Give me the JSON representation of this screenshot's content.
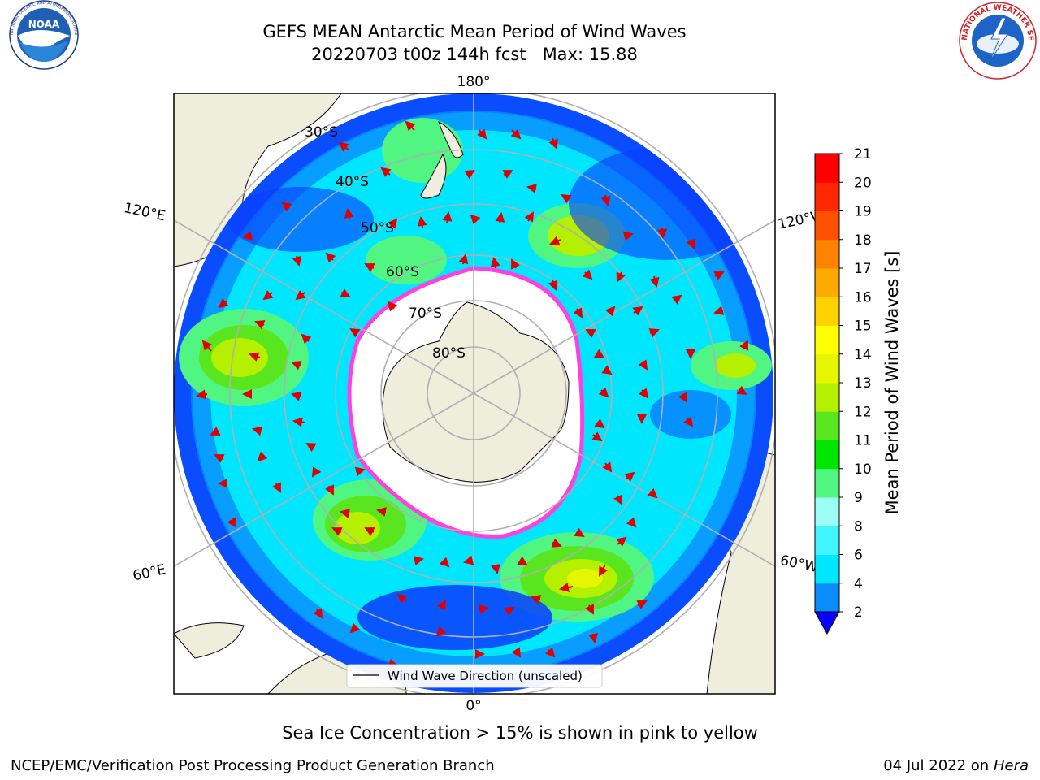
{
  "header": {
    "title_line1": "GEFS MEAN Antarctic Mean Period of Wind Waves",
    "title_line2": "20220703 t00z 144h fcst   Max: 15.88"
  },
  "logos": {
    "noaa": {
      "text": "NOAA",
      "ring_text": "NATIONAL OCEANIC AND ATMOSPHERIC ADMINISTRATION · U.S. DEPARTMENT OF COMMERCE"
    },
    "nws": {
      "ring_text": "NATIONAL WEATHER SERVICE"
    }
  },
  "map": {
    "lon_labels": {
      "top": "180°",
      "bottom": "0°",
      "upper_left": "120°E",
      "upper_right": "120°W",
      "lower_left": "60°E",
      "lower_right": "60°W"
    },
    "lat_labels": [
      "30°S",
      "40°S",
      "50°S",
      "60°S",
      "70°S",
      "80°S"
    ],
    "legend_label": "Wind Wave Direction (unscaled)"
  },
  "colorbar": {
    "label": "Mean Period of Wind Waves [s]",
    "ticks": [
      "2",
      "4",
      "6",
      "8",
      "9",
      "10",
      "11",
      "12",
      "13",
      "14",
      "15",
      "16",
      "17",
      "18",
      "19",
      "20",
      "21"
    ],
    "colors": [
      "#0a3cff",
      "#0a8cff",
      "#00e6ff",
      "#40f5ff",
      "#9bfff4",
      "#50f582",
      "#00e600",
      "#5ae61e",
      "#b4f000",
      "#e6f500",
      "#ffff00",
      "#ffd200",
      "#ffaa00",
      "#ff8200",
      "#ff5000",
      "#ff2800",
      "#ff0000"
    ]
  },
  "notes": {
    "sea_ice": "Sea Ice Concentration > 15% is shown in pink to yellow"
  },
  "footer": {
    "left": "NCEP/EMC/Verification Post Processing Product Generation Branch",
    "right_date": "04 Jul 2022 on ",
    "right_host": "Hera"
  }
}
